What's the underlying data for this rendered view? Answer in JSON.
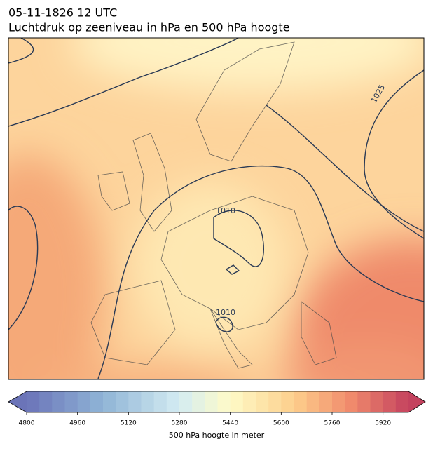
{
  "header": {
    "title": "05-11-1826 12 UTC",
    "subtitle": "Luchtdruk op zeeniveau in hPa en 500 hPa hoogte"
  },
  "map": {
    "contour_labels": [
      "1025",
      "1010",
      "1010"
    ]
  },
  "colorbar": {
    "label": "500 hPa hoogte in meter",
    "lim": [
      4800,
      6000
    ],
    "ticks": [
      4800,
      4960,
      5120,
      5280,
      5440,
      5600,
      5760,
      5920
    ]
  }
}
